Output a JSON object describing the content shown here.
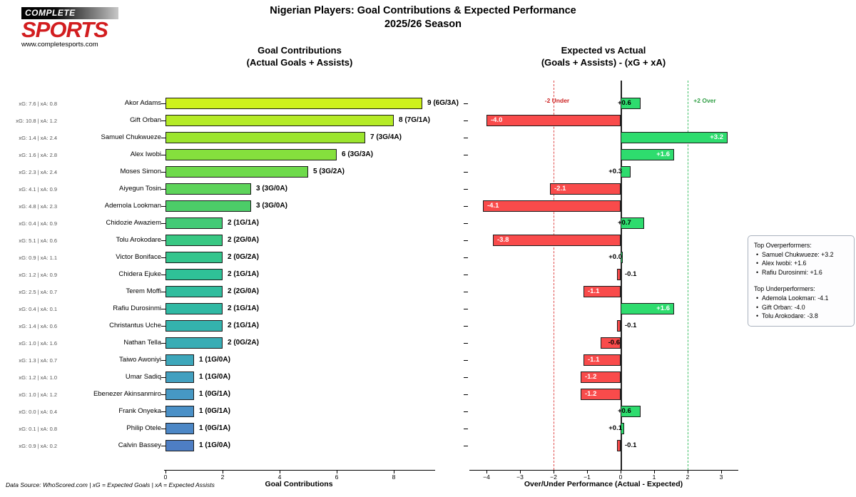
{
  "logo": {
    "top_text": "COMPLETE",
    "brand": "SPORTS",
    "url": "www.completesports.com"
  },
  "header": {
    "title_line1": "Nigerian Players: Goal Contributions & Expected Performance",
    "title_line2": "2025/26 Season"
  },
  "panels": {
    "left": {
      "title_line1": "Goal Contributions",
      "title_line2": "(Actual Goals + Assists)",
      "xlabel": "Goal Contributions"
    },
    "right": {
      "title_line1": "Expected vs Actual",
      "title_line2": "(Goals + Assists) - (xG + xA)",
      "xlabel": "Over/Under Performance (Actual - Expected)",
      "under_annotation": "-2 Under",
      "over_annotation": "+2 Over"
    }
  },
  "legend": {
    "over_title": "Top Overperformers:",
    "over_items": [
      "Samuel Chukwueze: +3.2",
      "Alex Iwobi: +1.6",
      "Rafiu Durosinmi: +1.6"
    ],
    "under_title": "Top Underperformers:",
    "under_items": [
      "Ademola Lookman: -4.1",
      "Gift Orban: -4.0",
      "Tolu Arokodare: -3.8"
    ]
  },
  "footer": "Data Source: WhoScored.com | xG = Expected Goals | xA = Expected Assists",
  "colors": {
    "positive_bar": "#2edc6e",
    "negative_bar": "#f94b4b",
    "under_line": "#e04b4b",
    "over_line": "#3bbf63",
    "zero_line": "#222222",
    "left_bar_gradient": [
      "#cef11d",
      "#9ce52e",
      "#6eda4b",
      "#4ccd68",
      "#38c883",
      "#2fc197",
      "#30b9a4",
      "#38adb5",
      "#42a0c0",
      "#4a90c7",
      "#4e7ec4"
    ]
  },
  "chart_data": [
    {
      "type": "bar",
      "orientation": "horizontal",
      "title": "Goal Contributions (Actual Goals + Assists)",
      "xlabel": "Goal Contributions",
      "xlim": [
        0,
        9.45
      ],
      "xticks": [
        0,
        2,
        4,
        6,
        8
      ],
      "grid": false,
      "categories": [
        "Akor Adams",
        "Gift Orban",
        "Samuel Chukwueze",
        "Alex Iwobi",
        "Moses Simon",
        "Aiyegun Tosin",
        "Ademola Lookman",
        "Chidozie Awaziem",
        "Tolu Arokodare",
        "Victor Boniface",
        "Chidera Ejuke",
        "Terem Moffi",
        "Rafiu Durosinmi",
        "Christantus Uche",
        "Nathan Tella",
        "Taiwo Awoniyi",
        "Umar Sadiq",
        "Ebenezer Akinsanmiro",
        "Frank Onyeka",
        "Philip Otele",
        "Calvin Bassey"
      ],
      "values": [
        9,
        8,
        7,
        6,
        5,
        3,
        3,
        2,
        2,
        2,
        2,
        2,
        2,
        2,
        2,
        1,
        1,
        1,
        1,
        1,
        1
      ],
      "bar_labels": [
        "9 (6G/3A)",
        "8 (7G/1A)",
        "7 (3G/4A)",
        "6 (3G/3A)",
        "5 (3G/2A)",
        "3 (3G/0A)",
        "3 (3G/0A)",
        "2 (1G/1A)",
        "2 (2G/0A)",
        "2 (0G/2A)",
        "2 (1G/1A)",
        "2 (2G/0A)",
        "2 (1G/1A)",
        "2 (1G/1A)",
        "2 (0G/2A)",
        "1 (1G/0A)",
        "1 (1G/0A)",
        "1 (0G/1A)",
        "1 (0G/1A)",
        "1 (0G/1A)",
        "1 (1G/0A)"
      ],
      "ytick_annotations": [
        "xG: 7.6 | xA: 0.8",
        "xG: 10.8 | xA: 1.2",
        "xG: 1.4 | xA: 2.4",
        "xG: 1.6 | xA: 2.8",
        "xG: 2.3 | xA: 2.4",
        "xG: 4.1 | xA: 0.9",
        "xG: 4.8 | xA: 2.3",
        "xG: 0.4 | xA: 0.9",
        "xG: 5.1 | xA: 0.6",
        "xG: 0.9 | xA: 1.1",
        "xG: 1.2 | xA: 0.9",
        "xG: 2.5 | xA: 0.7",
        "xG: 0.4 | xA: 0.1",
        "xG: 1.4 | xA: 0.6",
        "xG: 1.0 | xA: 1.6",
        "xG: 1.3 | xA: 0.7",
        "xG: 1.2 | xA: 1.0",
        "xG: 1.0 | xA: 1.2",
        "xG: 0.0 | xA: 0.4",
        "xG: 0.1 | xA: 0.8",
        "xG: 0.9 | xA: 0.2"
      ]
    },
    {
      "type": "bar",
      "orientation": "horizontal",
      "title": "Expected vs Actual (Goals + Assists) - (xG + xA)",
      "xlabel": "Over/Under Performance (Actual - Expected)",
      "xlim": [
        -4.5,
        3.55
      ],
      "xticks": [
        -4,
        -3,
        -2,
        -1,
        0,
        1,
        2,
        3
      ],
      "grid": false,
      "categories": [
        "Akor Adams",
        "Gift Orban",
        "Samuel Chukwueze",
        "Alex Iwobi",
        "Moses Simon",
        "Aiyegun Tosin",
        "Ademola Lookman",
        "Chidozie Awaziem",
        "Tolu Arokodare",
        "Victor Boniface",
        "Chidera Ejuke",
        "Terem Moffi",
        "Rafiu Durosinmi",
        "Christantus Uche",
        "Nathan Tella",
        "Taiwo Awoniyi",
        "Umar Sadiq",
        "Ebenezer Akinsanmiro",
        "Frank Onyeka",
        "Philip Otele",
        "Calvin Bassey"
      ],
      "values": [
        0.6,
        -4.0,
        3.2,
        1.6,
        0.3,
        -2.1,
        -4.1,
        0.7,
        -3.8,
        0.0,
        -0.1,
        -1.1,
        1.6,
        -0.1,
        -0.6,
        -1.1,
        -1.2,
        -1.2,
        0.6,
        0.1,
        -0.1
      ],
      "bar_labels": [
        "+0.6",
        "-4.0",
        "+3.2",
        "+1.6",
        "+0.3",
        "-2.1",
        "-4.1",
        "+0.7",
        "-3.8",
        "+0.0",
        "-0.1",
        "-1.1",
        "+1.6",
        "-0.1",
        "-0.6",
        "-1.1",
        "-1.2",
        "-1.2",
        "+0.6",
        "+0.1",
        "-0.1"
      ],
      "reference_lines": [
        {
          "x": -2,
          "style": "dashed",
          "color": "red",
          "label": "-2 Under"
        },
        {
          "x": 0,
          "style": "solid",
          "color": "black"
        },
        {
          "x": 2,
          "style": "dashed",
          "color": "green",
          "label": "+2 Over"
        }
      ]
    }
  ]
}
